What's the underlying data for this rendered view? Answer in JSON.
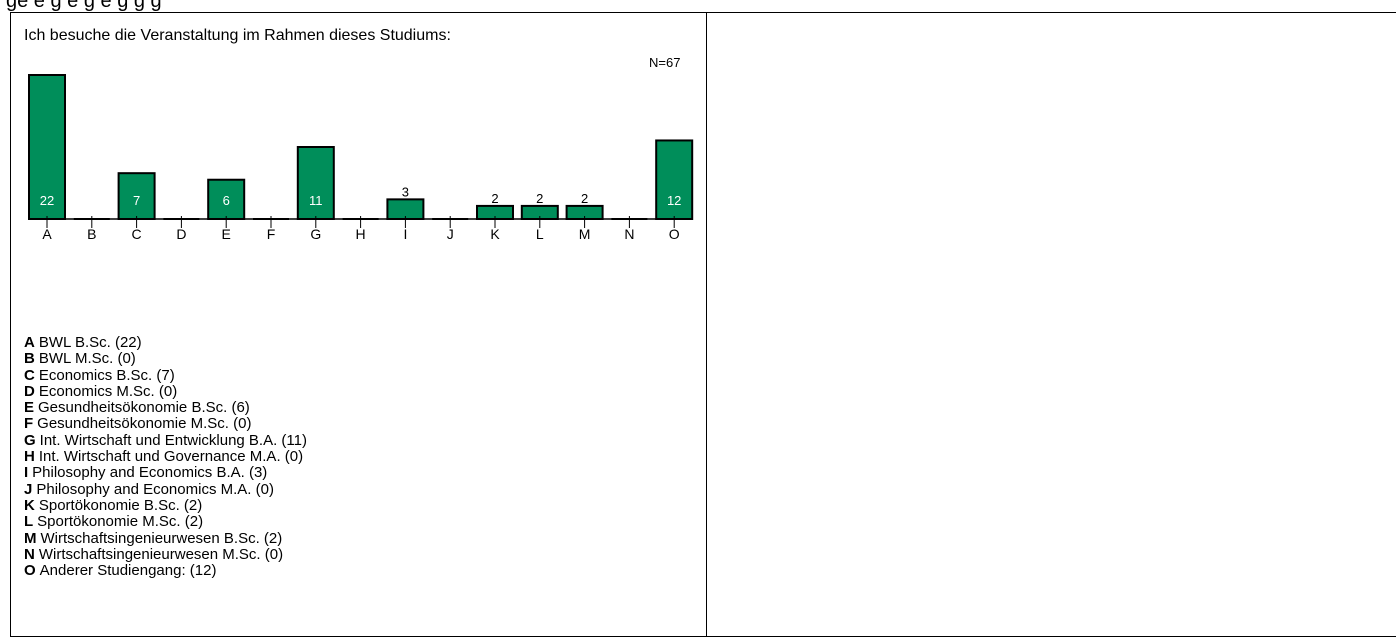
{
  "header_partial": "ge     e    g     e        g    e  g   g g",
  "question": "Ich besuche die Veranstaltung im Rahmen dieses Studiums:",
  "n_label": "N=67",
  "colors": {
    "bar_fill": "#008E5A",
    "bar_stroke": "#000000",
    "axis": "#000000",
    "label_on_bar": "#ffffff",
    "label_above": "#000000"
  },
  "chart_data": {
    "type": "bar",
    "title": "Ich besuche die Veranstaltung im Rahmen dieses Studiums:",
    "categories": [
      "A",
      "B",
      "C",
      "D",
      "E",
      "F",
      "G",
      "H",
      "I",
      "J",
      "K",
      "L",
      "M",
      "N",
      "O"
    ],
    "values": [
      22,
      0,
      7,
      0,
      6,
      0,
      11,
      0,
      3,
      0,
      2,
      2,
      2,
      0,
      12
    ],
    "xlabel": "",
    "ylabel": "",
    "ylim": [
      0,
      22
    ],
    "grid": false,
    "legend": "below"
  },
  "legend": [
    {
      "letter": "A",
      "text": "BWL B.Sc. (22)"
    },
    {
      "letter": "B",
      "text": "BWL M.Sc. (0)"
    },
    {
      "letter": "C",
      "text": "Economics B.Sc. (7)"
    },
    {
      "letter": "D",
      "text": "Economics M.Sc. (0)"
    },
    {
      "letter": "E",
      "text": "Gesundheitsökonomie B.Sc. (6)"
    },
    {
      "letter": "F",
      "text": "Gesundheitsökonomie M.Sc. (0)"
    },
    {
      "letter": "G",
      "text": "Int. Wirtschaft und Entwicklung B.A. (11)"
    },
    {
      "letter": "H",
      "text": "Int. Wirtschaft und Governance M.A. (0)"
    },
    {
      "letter": "I",
      "text": "Philosophy and Economics B.A. (3)"
    },
    {
      "letter": "J",
      "text": "Philosophy and Economics M.A. (0)"
    },
    {
      "letter": "K",
      "text": "Sportökonomie B.Sc. (2)"
    },
    {
      "letter": "L",
      "text": "Sportökonomie M.Sc. (2)"
    },
    {
      "letter": "M",
      "text": "Wirtschaftsingenieurwesen B.Sc. (2)"
    },
    {
      "letter": "N",
      "text": "Wirtschaftsingenieurwesen M.Sc. (0)"
    },
    {
      "letter": "O",
      "text": "Anderer Studiengang: (12)"
    }
  ]
}
